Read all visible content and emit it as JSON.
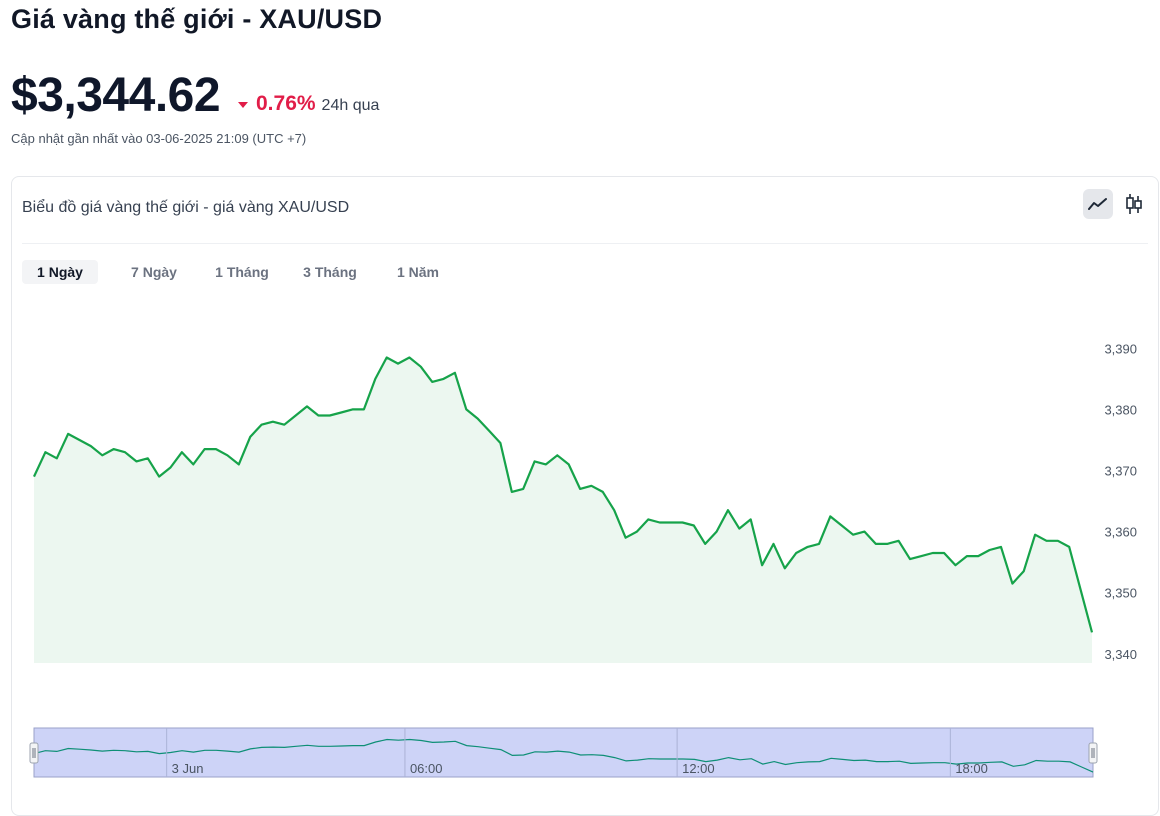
{
  "page": {
    "title": "Giá vàng thế giới - XAU/USD",
    "price": "$3,344.62",
    "change_pct": "0.76%",
    "change_direction": "down",
    "change_period": "24h qua",
    "updated": "Cập nhật gần nhất vào 03-06-2025 21:09 (UTC +7)"
  },
  "card": {
    "title": "Biểu đồ giá vàng thế giới - giá vàng XAU/USD",
    "view_toggle": [
      {
        "name": "line-chart-icon",
        "active": true
      },
      {
        "name": "candlestick-icon",
        "active": false
      }
    ],
    "tabs": [
      {
        "label": "1 Ngày",
        "active": true
      },
      {
        "label": "7 Ngày",
        "active": false
      },
      {
        "label": "1 Tháng",
        "active": false
      },
      {
        "label": "3 Tháng",
        "active": false
      },
      {
        "label": "1 Năm",
        "active": false
      }
    ]
  },
  "colors": {
    "line": "#16a34a",
    "area_fill": "#ecf7f0",
    "negative": "#e11d48",
    "navigator_fill": "#cdd3f7",
    "navigator_border": "#9aa2c8"
  },
  "chart_data": {
    "type": "area",
    "title": "",
    "xlabel": "",
    "ylabel": "",
    "y_ticks": [
      "3,390",
      "3,380",
      "3,370",
      "3,360",
      "3,350",
      "3,340"
    ],
    "y_tick_values": [
      3390,
      3380,
      3370,
      3360,
      3350,
      3340
    ],
    "ylim": [
      3338.5,
      3393
    ],
    "axis_side": "right",
    "grid": false,
    "series": [
      {
        "values": [
          3369.0,
          3373.0,
          3372.0,
          3376.0,
          3375.0,
          3374.0,
          3372.5,
          3373.5,
          3373.0,
          3371.5,
          3372.0,
          3369.0,
          3370.5,
          3373.0,
          3371.0,
          3373.5,
          3373.5,
          3372.5,
          3371.0,
          3375.5,
          3377.5,
          3378.0,
          3377.5,
          3379.0,
          3380.5,
          3379.0,
          3379.0,
          3379.5,
          3380.0,
          3380.0,
          3385.0,
          3388.5,
          3387.5,
          3388.5,
          3387.0,
          3384.5,
          3385.0,
          3386.0,
          3380.0,
          3378.5,
          3376.5,
          3374.5,
          3366.5,
          3367.0,
          3371.5,
          3371.0,
          3372.5,
          3371.0,
          3367.0,
          3367.5,
          3366.5,
          3363.5,
          3359.0,
          3360.0,
          3362.0,
          3361.5,
          3361.5,
          3361.5,
          3361.0,
          3358.0,
          3360.0,
          3363.5,
          3360.5,
          3362.0,
          3354.5,
          3358.0,
          3354.0,
          3356.5,
          3357.5,
          3358.0,
          3362.5,
          3361.0,
          3359.5,
          3360.0,
          3358.0,
          3358.0,
          3358.5,
          3355.5,
          3356.0,
          3356.5,
          3356.5,
          3354.5,
          3356.0,
          3356.0,
          3357.0,
          3357.5,
          3351.5,
          3353.5,
          3359.5,
          3358.5,
          3358.5,
          3357.5,
          3350.5,
          3343.5
        ]
      }
    ],
    "navigator": {
      "labels": [
        "3 Jun",
        "06:00",
        "12:00",
        "18:00"
      ],
      "label_positions": [
        0.13,
        0.355,
        0.612,
        0.87
      ]
    }
  }
}
